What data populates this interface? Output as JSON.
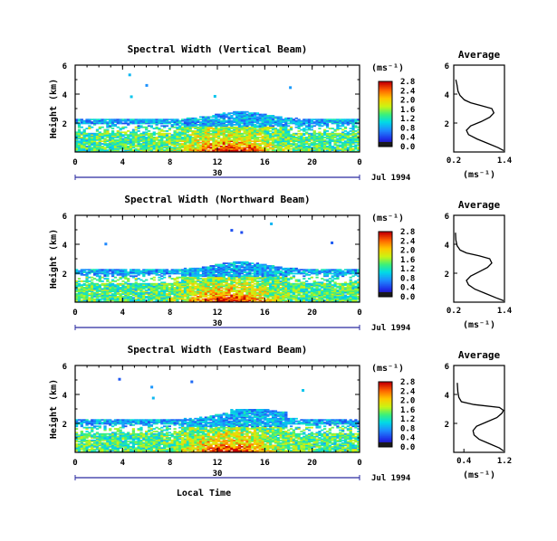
{
  "common": {
    "x_ticks": [
      "0",
      "4",
      "8",
      "12",
      "16",
      "20",
      "0"
    ],
    "x_values": [
      0,
      4,
      8,
      12,
      16,
      20,
      24
    ],
    "date_day": "30",
    "date_label": "Jul 1994",
    "unit_label": "(ms⁻¹)",
    "avg_title": "Average",
    "xlabel_bottom": "Local Time",
    "ylabel": "Height (km)"
  },
  "chart_data": [
    {
      "type": "heatmap",
      "title": "Spectral Width (Vertical Beam)",
      "xlabel": "",
      "ylabel": "Height (km)",
      "xlim": [
        0,
        24
      ],
      "ylim": [
        0,
        6
      ],
      "y_ticks": [
        "2",
        "4",
        "6"
      ],
      "colorbar_ticks": [
        "0.0",
        "0.4",
        "0.8",
        "1.2",
        "1.6",
        "2.0",
        "2.4",
        "2.8"
      ],
      "colorbar_range": [
        0,
        3.0
      ],
      "average": {
        "title": "Average",
        "xlim": [
          0.2,
          1.4
        ],
        "x_ticks": [
          "0.2",
          "1.4"
        ],
        "ylim": [
          0,
          6
        ],
        "y_ticks": [
          "2",
          "4",
          "6"
        ],
        "xlabel": "(ms⁻¹)",
        "profile": [
          [
            1.38,
            0.1
          ],
          [
            1.25,
            0.3
          ],
          [
            1.0,
            0.6
          ],
          [
            0.75,
            0.9
          ],
          [
            0.55,
            1.2
          ],
          [
            0.5,
            1.5
          ],
          [
            0.6,
            1.8
          ],
          [
            0.85,
            2.1
          ],
          [
            1.05,
            2.4
          ],
          [
            1.15,
            2.7
          ],
          [
            1.1,
            3.0
          ],
          [
            0.85,
            3.2
          ],
          [
            0.6,
            3.4
          ],
          [
            0.45,
            3.6
          ],
          [
            0.35,
            3.9
          ],
          [
            0.3,
            4.2
          ],
          [
            0.28,
            4.6
          ],
          [
            0.25,
            5.0
          ]
        ]
      }
    },
    {
      "type": "heatmap",
      "title": "Spectral Width (Northward Beam)",
      "xlabel": "",
      "ylabel": "Height (km)",
      "xlim": [
        0,
        24
      ],
      "ylim": [
        0,
        6
      ],
      "y_ticks": [
        "2",
        "4",
        "6"
      ],
      "colorbar_ticks": [
        "0.0",
        "0.4",
        "0.8",
        "1.2",
        "1.6",
        "2.0",
        "2.4",
        "2.8"
      ],
      "colorbar_range": [
        0,
        3.0
      ],
      "average": {
        "title": "Average",
        "xlim": [
          0.2,
          1.4
        ],
        "x_ticks": [
          "0.2",
          "1.4"
        ],
        "ylim": [
          0,
          6
        ],
        "y_ticks": [
          "2",
          "4",
          "6"
        ],
        "xlabel": "(ms⁻¹)",
        "profile": [
          [
            1.38,
            0.1
          ],
          [
            1.2,
            0.3
          ],
          [
            0.95,
            0.6
          ],
          [
            0.7,
            0.9
          ],
          [
            0.55,
            1.2
          ],
          [
            0.5,
            1.5
          ],
          [
            0.6,
            1.8
          ],
          [
            0.8,
            2.1
          ],
          [
            1.0,
            2.4
          ],
          [
            1.1,
            2.7
          ],
          [
            1.05,
            3.0
          ],
          [
            0.8,
            3.2
          ],
          [
            0.5,
            3.4
          ],
          [
            0.35,
            3.6
          ],
          [
            0.28,
            3.9
          ],
          [
            0.25,
            4.3
          ],
          [
            0.24,
            4.8
          ]
        ]
      }
    },
    {
      "type": "heatmap",
      "title": "Spectral Width (Eastward Beam)",
      "xlabel": "Local Time",
      "ylabel": "Height (km)",
      "xlim": [
        0,
        24
      ],
      "ylim": [
        0,
        6
      ],
      "y_ticks": [
        "2",
        "4",
        "6"
      ],
      "colorbar_ticks": [
        "0.0",
        "0.4",
        "0.8",
        "1.2",
        "1.6",
        "2.0",
        "2.4",
        "2.8"
      ],
      "colorbar_range": [
        0,
        3.0
      ],
      "average": {
        "title": "Average",
        "xlim": [
          0.2,
          1.2
        ],
        "x_ticks": [
          "0.4",
          "1.2"
        ],
        "ylim": [
          0,
          6
        ],
        "y_ticks": [
          "2",
          "4",
          "6"
        ],
        "xlabel": "(ms⁻¹)",
        "profile": [
          [
            1.18,
            0.1
          ],
          [
            1.1,
            0.3
          ],
          [
            0.9,
            0.6
          ],
          [
            0.7,
            0.9
          ],
          [
            0.6,
            1.2
          ],
          [
            0.58,
            1.5
          ],
          [
            0.65,
            1.8
          ],
          [
            0.85,
            2.1
          ],
          [
            1.05,
            2.4
          ],
          [
            1.15,
            2.7
          ],
          [
            1.18,
            2.9
          ],
          [
            1.1,
            3.1
          ],
          [
            0.6,
            3.3
          ],
          [
            0.35,
            3.5
          ],
          [
            0.3,
            3.8
          ],
          [
            0.28,
            4.2
          ],
          [
            0.27,
            4.8
          ]
        ]
      }
    }
  ]
}
